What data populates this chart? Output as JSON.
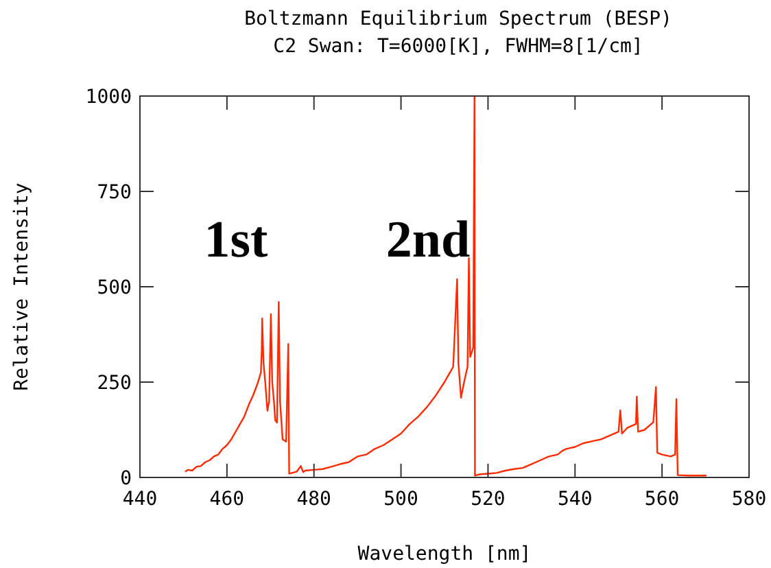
{
  "chart_data": {
    "type": "line",
    "title": "Boltzmann Equilibrium Spectrum (BESP)",
    "subtitle": "C2 Swan: T=6000[K], FWHM=8[1/cm]",
    "xlabel": "Wavelength [nm]",
    "ylabel": "Relative Intensity",
    "xlim": [
      440,
      580
    ],
    "xticks": [
      440,
      460,
      480,
      500,
      520,
      540,
      560,
      580
    ],
    "ylim": [
      0,
      1000
    ],
    "yticks": [
      0,
      250,
      500,
      750,
      1000
    ],
    "grid": false,
    "marker": "none",
    "line_style": "solid",
    "annotations": [
      "1st",
      "2nd"
    ],
    "series": [
      {
        "color": "#ff2a00",
        "x": [
          450.4,
          451,
          452,
          453,
          454,
          455,
          456,
          457,
          458,
          459,
          460,
          461,
          462,
          463,
          464,
          465,
          466,
          467,
          467.8,
          468,
          468.1,
          468.4,
          468.8,
          469.3,
          469.7,
          470.1,
          470.4,
          470.8,
          471.1,
          471.5,
          471.9,
          472.2,
          472.8,
          473.6,
          474.1,
          474.3,
          475,
          476,
          477,
          477.5,
          478,
          480,
          482,
          484,
          486,
          488,
          490,
          492,
          494,
          496,
          498,
          500,
          502,
          504,
          506,
          508,
          510,
          511,
          512,
          512.9,
          513.2,
          513.8,
          514.5,
          515.3,
          515.6,
          515.9,
          516.6,
          516.9,
          517,
          518,
          520,
          522,
          524,
          526,
          528,
          530,
          532,
          534,
          536,
          537.1,
          538,
          540,
          542,
          544,
          546,
          548,
          550,
          550.4,
          550.8,
          552,
          554,
          554.2,
          554.5,
          556,
          558,
          558.6,
          558.9,
          560,
          562,
          563,
          563.3,
          563.6,
          566,
          568,
          570.2
        ],
        "values": [
          15,
          20,
          18,
          28,
          30,
          40,
          45,
          55,
          60,
          75,
          85,
          100,
          120,
          140,
          160,
          190,
          215,
          245,
          275,
          330,
          417,
          300,
          250,
          175,
          200,
          428,
          250,
          200,
          150,
          144,
          460,
          200,
          100,
          94,
          350,
          10,
          12,
          15,
          30,
          14,
          18,
          20,
          22,
          28,
          35,
          40,
          55,
          60,
          75,
          85,
          100,
          115,
          140,
          160,
          185,
          215,
          250,
          270,
          290,
          520,
          300,
          209,
          250,
          290,
          575,
          316,
          340,
          1000,
          5,
          8,
          10,
          12,
          18,
          22,
          25,
          35,
          45,
          55,
          60,
          70,
          75,
          80,
          90,
          95,
          100,
          110,
          120,
          176,
          115,
          130,
          140,
          212,
          120,
          125,
          145,
          237,
          65,
          60,
          55,
          60,
          205,
          6,
          5,
          5,
          5
        ]
      }
    ]
  }
}
